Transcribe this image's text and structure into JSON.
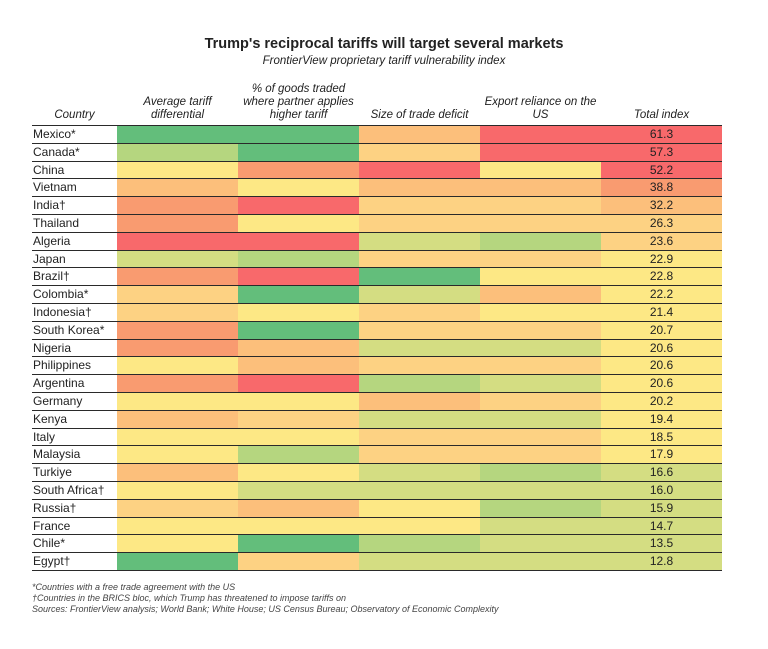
{
  "title": "Trump's reciprocal tariffs will target several markets",
  "subtitle": "FrontierView proprietary tariff vulnerability index",
  "columns": {
    "country": "Country",
    "avg_tariff": "Average tariff differential",
    "pct_goods": "% of goods traded where partner applies higher tariff",
    "deficit": "Size of trade deficit",
    "export_reliance": "Export reliance on the US",
    "total": "Total index"
  },
  "colors": {
    "green": "#63be7b",
    "yellow_green": "#b5d67f",
    "light_yellow_green": "#d4dd82",
    "yellow": "#fde885",
    "light_orange": "#fdd283",
    "orange": "#fcbf7b",
    "dark_orange": "#f99b70",
    "red": "#f8696b"
  },
  "chart_data": {
    "type": "table",
    "rows": [
      {
        "country": "Mexico*",
        "avg_tariff": "green",
        "pct_goods": "green",
        "deficit": "orange",
        "export_reliance": "red",
        "total": 61.3,
        "total_color": "red"
      },
      {
        "country": "Canada*",
        "avg_tariff": "yellow_green",
        "pct_goods": "green",
        "deficit": "light_orange",
        "export_reliance": "red",
        "total": 57.3,
        "total_color": "red"
      },
      {
        "country": "China",
        "avg_tariff": "yellow",
        "pct_goods": "dark_orange",
        "deficit": "red",
        "export_reliance": "yellow",
        "total": 52.2,
        "total_color": "red"
      },
      {
        "country": "Vietnam",
        "avg_tariff": "orange",
        "pct_goods": "yellow",
        "deficit": "orange",
        "export_reliance": "orange",
        "total": 38.8,
        "total_color": "dark_orange"
      },
      {
        "country": "India†",
        "avg_tariff": "dark_orange",
        "pct_goods": "red",
        "deficit": "light_orange",
        "export_reliance": "light_orange",
        "total": 32.2,
        "total_color": "orange"
      },
      {
        "country": "Thailand",
        "avg_tariff": "dark_orange",
        "pct_goods": "yellow",
        "deficit": "light_orange",
        "export_reliance": "light_orange",
        "total": 26.3,
        "total_color": "light_orange"
      },
      {
        "country": "Algeria",
        "avg_tariff": "red",
        "pct_goods": "red",
        "deficit": "light_yellow_green",
        "export_reliance": "yellow_green",
        "total": 23.6,
        "total_color": "light_orange"
      },
      {
        "country": "Japan",
        "avg_tariff": "light_yellow_green",
        "pct_goods": "yellow_green",
        "deficit": "light_orange",
        "export_reliance": "light_orange",
        "total": 22.9,
        "total_color": "yellow"
      },
      {
        "country": "Brazil†",
        "avg_tariff": "dark_orange",
        "pct_goods": "red",
        "deficit": "green",
        "export_reliance": "yellow",
        "total": 22.8,
        "total_color": "yellow"
      },
      {
        "country": "Colombia*",
        "avg_tariff": "light_orange",
        "pct_goods": "green",
        "deficit": "light_yellow_green",
        "export_reliance": "orange",
        "total": 22.2,
        "total_color": "yellow"
      },
      {
        "country": "Indonesia†",
        "avg_tariff": "light_orange",
        "pct_goods": "yellow",
        "deficit": "light_orange",
        "export_reliance": "yellow",
        "total": 21.4,
        "total_color": "yellow"
      },
      {
        "country": "South Korea*",
        "avg_tariff": "dark_orange",
        "pct_goods": "green",
        "deficit": "light_orange",
        "export_reliance": "light_orange",
        "total": 20.7,
        "total_color": "yellow"
      },
      {
        "country": "Nigeria",
        "avg_tariff": "dark_orange",
        "pct_goods": "orange",
        "deficit": "light_yellow_green",
        "export_reliance": "light_yellow_green",
        "total": 20.6,
        "total_color": "yellow"
      },
      {
        "country": "Philippines",
        "avg_tariff": "yellow",
        "pct_goods": "orange",
        "deficit": "light_orange",
        "export_reliance": "light_orange",
        "total": 20.6,
        "total_color": "yellow"
      },
      {
        "country": "Argentina",
        "avg_tariff": "dark_orange",
        "pct_goods": "red",
        "deficit": "yellow_green",
        "export_reliance": "light_yellow_green",
        "total": 20.6,
        "total_color": "yellow"
      },
      {
        "country": "Germany",
        "avg_tariff": "yellow",
        "pct_goods": "yellow",
        "deficit": "orange",
        "export_reliance": "light_orange",
        "total": 20.2,
        "total_color": "yellow"
      },
      {
        "country": "Kenya",
        "avg_tariff": "orange",
        "pct_goods": "light_orange",
        "deficit": "light_yellow_green",
        "export_reliance": "light_yellow_green",
        "total": 19.4,
        "total_color": "yellow"
      },
      {
        "country": "Italy",
        "avg_tariff": "yellow",
        "pct_goods": "yellow",
        "deficit": "light_orange",
        "export_reliance": "light_orange",
        "total": 18.5,
        "total_color": "yellow"
      },
      {
        "country": "Malaysia",
        "avg_tariff": "yellow",
        "pct_goods": "yellow_green",
        "deficit": "light_orange",
        "export_reliance": "light_orange",
        "total": 17.9,
        "total_color": "yellow"
      },
      {
        "country": "Turkiye",
        "avg_tariff": "orange",
        "pct_goods": "yellow",
        "deficit": "light_yellow_green",
        "export_reliance": "yellow_green",
        "total": 16.6,
        "total_color": "light_yellow_green"
      },
      {
        "country": "South Africa†",
        "avg_tariff": "yellow",
        "pct_goods": "light_yellow_green",
        "deficit": "light_yellow_green",
        "export_reliance": "light_yellow_green",
        "total": 16.0,
        "total_color": "light_yellow_green"
      },
      {
        "country": "Russia†",
        "avg_tariff": "light_orange",
        "pct_goods": "orange",
        "deficit": "yellow",
        "export_reliance": "yellow_green",
        "total": 15.9,
        "total_color": "light_yellow_green"
      },
      {
        "country": "France",
        "avg_tariff": "yellow",
        "pct_goods": "yellow",
        "deficit": "yellow",
        "export_reliance": "light_yellow_green",
        "total": 14.7,
        "total_color": "light_yellow_green"
      },
      {
        "country": "Chile*",
        "avg_tariff": "yellow",
        "pct_goods": "green",
        "deficit": "yellow_green",
        "export_reliance": "light_yellow_green",
        "total": 13.5,
        "total_color": "light_yellow_green"
      },
      {
        "country": "Egypt†",
        "avg_tariff": "green",
        "pct_goods": "light_orange",
        "deficit": "light_yellow_green",
        "export_reliance": "light_yellow_green",
        "total": 12.8,
        "total_color": "light_yellow_green"
      }
    ]
  },
  "footnotes": [
    "*Countries with a free trade agreement with the US",
    "†Countries in the BRICS bloc, which Trump has threatened to impose tariffs on",
    "Sources: FrontierView analysis; World Bank; White House; US Census Bureau; Observatory of Economic Complexity"
  ]
}
